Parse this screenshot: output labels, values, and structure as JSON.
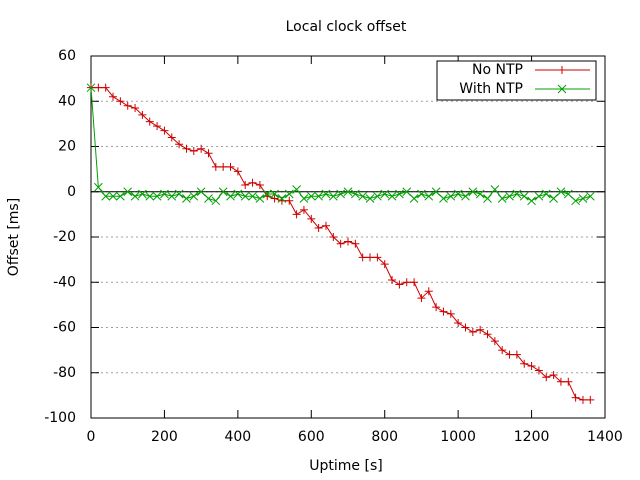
{
  "chart_data": {
    "type": "line",
    "title": "Local clock offset",
    "x_label": "Uptime [s]",
    "y_label": "Offset [ms]",
    "x": [
      0,
      20,
      40,
      60,
      80,
      100,
      120,
      140,
      160,
      180,
      200,
      220,
      240,
      260,
      280,
      300,
      320,
      340,
      360,
      380,
      400,
      420,
      440,
      460,
      480,
      500,
      520,
      540,
      560,
      580,
      600,
      620,
      640,
      660,
      680,
      700,
      720,
      740,
      760,
      780,
      800,
      820,
      840,
      860,
      880,
      900,
      920,
      940,
      960,
      980,
      1000,
      1020,
      1040,
      1060,
      1080,
      1100,
      1120,
      1140,
      1160,
      1180,
      1200,
      1220,
      1240,
      1260,
      1280,
      1300,
      1320,
      1340,
      1360
    ],
    "series": [
      {
        "name": "No NTP",
        "color": "#cc0000",
        "marker": "plus",
        "values": [
          46,
          46,
          46,
          42,
          40,
          38,
          37,
          34,
          31,
          29,
          27,
          24,
          21,
          19,
          18,
          19,
          17,
          11,
          11,
          11,
          9,
          3,
          4,
          3,
          -2,
          -3,
          -4,
          -4,
          -10,
          -8,
          -12,
          -16,
          -15,
          -20,
          -23,
          -22,
          -23,
          -29,
          -29,
          -29,
          -32,
          -39,
          -41,
          -40,
          -40,
          -47,
          -44,
          -51,
          -53,
          -54,
          -58,
          -60,
          -62,
          -61,
          -63,
          -66,
          -70,
          -72,
          -72,
          -76,
          -77,
          -79,
          -82,
          -81,
          -84,
          -84,
          -91,
          -92,
          -92
        ]
      },
      {
        "name": "With NTP",
        "color": "#00a000",
        "marker": "cross",
        "values": [
          46,
          2,
          -2,
          -2,
          -2,
          0,
          -2,
          -1,
          -2,
          -2,
          -1,
          -2,
          -1,
          -3,
          -2,
          0,
          -3,
          -4,
          0,
          -2,
          -1,
          -2,
          -2,
          -3,
          -1,
          -1,
          -3,
          -1,
          1,
          -3,
          -2,
          -2,
          -1,
          -2,
          -1,
          0,
          -1,
          -2,
          -3,
          -2,
          -1,
          -2,
          -1,
          0,
          -3,
          -1,
          -2,
          0,
          -3,
          -2,
          -1,
          -2,
          0,
          -1,
          -3,
          1,
          -3,
          -2,
          -1,
          -2,
          -4,
          -2,
          -1,
          -3,
          0,
          -1,
          -4,
          -3,
          -2
        ]
      }
    ],
    "xlim": [
      0,
      1400
    ],
    "xticks": [
      0,
      200,
      400,
      600,
      800,
      1000,
      1200,
      1400
    ],
    "ylim": [
      -100,
      60
    ],
    "yticks": [
      -100,
      -80,
      -60,
      -40,
      -20,
      0,
      20,
      40,
      60
    ],
    "grid": "y",
    "zeroaxis": true,
    "legend": "top-right"
  }
}
